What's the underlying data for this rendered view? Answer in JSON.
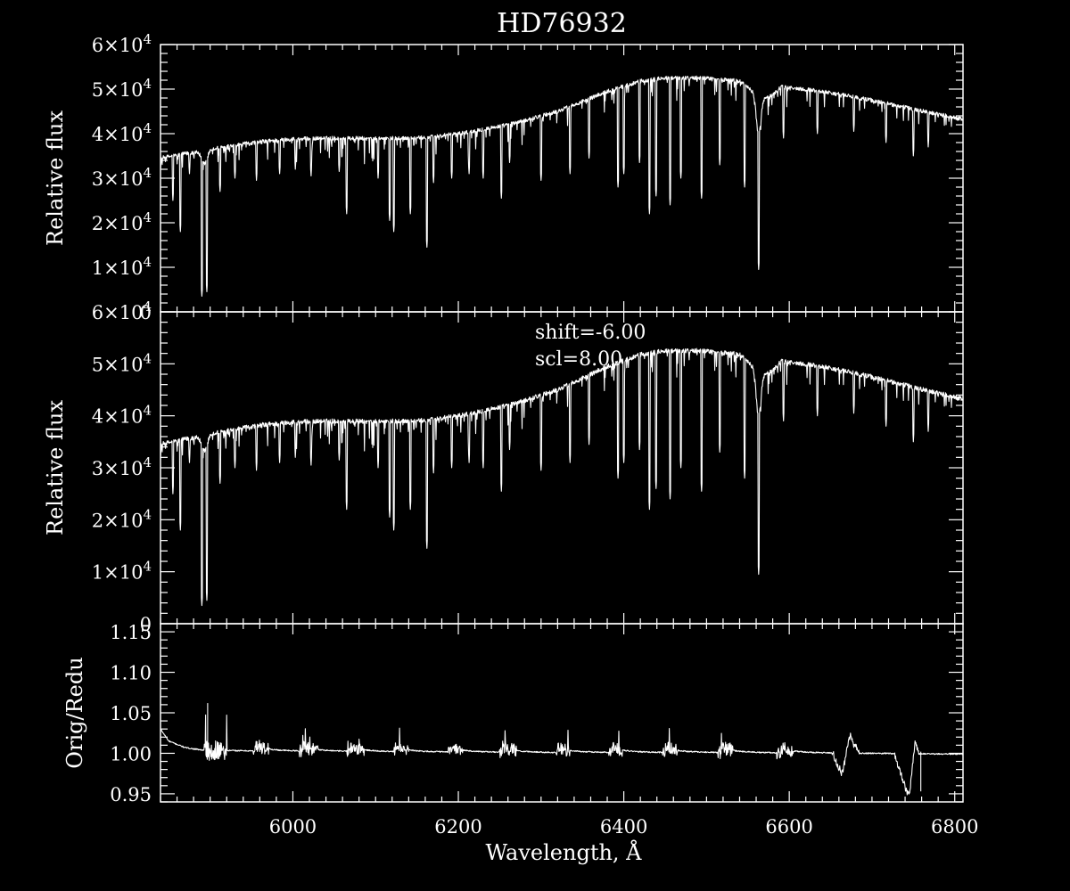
{
  "colors": {
    "background": "#000000",
    "foreground": "#ffffff"
  },
  "chart_data": {
    "type": "line",
    "title": "HD76932",
    "xlabel": "Wavelength, Å",
    "xlim": [
      5840,
      6810
    ],
    "x_ticks": [
      6000,
      6200,
      6400,
      6600,
      6800
    ],
    "panels": [
      {
        "id": "top",
        "ylabel": "Relative flux",
        "ylim": [
          0,
          60000
        ],
        "y_ticks": [
          {
            "value": 0,
            "mant": "0",
            "exp": ""
          },
          {
            "value": 10000,
            "mant": "1×10",
            "exp": "4"
          },
          {
            "value": 20000,
            "mant": "2×10",
            "exp": "4"
          },
          {
            "value": 30000,
            "mant": "3×10",
            "exp": "4"
          },
          {
            "value": 40000,
            "mant": "4×10",
            "exp": "4"
          },
          {
            "value": 50000,
            "mant": "5×10",
            "exp": "4"
          },
          {
            "value": 60000,
            "mant": "6×10",
            "exp": "4"
          }
        ],
        "continuum": [
          [
            5840,
            34500
          ],
          [
            5900,
            36500
          ],
          [
            5960,
            38200
          ],
          [
            6000,
            38800
          ],
          [
            6050,
            39000
          ],
          [
            6100,
            38900
          ],
          [
            6160,
            39100
          ],
          [
            6200,
            40000
          ],
          [
            6260,
            42000
          ],
          [
            6320,
            45000
          ],
          [
            6380,
            49500
          ],
          [
            6420,
            51800
          ],
          [
            6450,
            52500
          ],
          [
            6500,
            52500
          ],
          [
            6540,
            51800
          ],
          [
            6560,
            49000
          ],
          [
            6575,
            48000
          ],
          [
            6590,
            50500
          ],
          [
            6640,
            49500
          ],
          [
            6700,
            47500
          ],
          [
            6750,
            45500
          ],
          [
            6810,
            43200
          ]
        ],
        "absorption_lines": [
          [
            5855,
            25000
          ],
          [
            5864,
            18000
          ],
          [
            5875,
            31000
          ],
          [
            5890,
            3500
          ],
          [
            5896,
            4500
          ],
          [
            5912,
            27000
          ],
          [
            5930,
            30000
          ],
          [
            5956,
            29500
          ],
          [
            5984,
            31000
          ],
          [
            6003,
            32000
          ],
          [
            6022,
            30500
          ],
          [
            6056,
            31500
          ],
          [
            6065,
            22000
          ],
          [
            6103,
            30000
          ],
          [
            6117,
            20500
          ],
          [
            6122,
            18000
          ],
          [
            6142,
            22000
          ],
          [
            6162,
            14500
          ],
          [
            6170,
            29000
          ],
          [
            6192,
            30000
          ],
          [
            6213,
            31000
          ],
          [
            6230,
            30000
          ],
          [
            6252,
            25500
          ],
          [
            6262,
            33500
          ],
          [
            6300,
            29500
          ],
          [
            6335,
            31000
          ],
          [
            6358,
            34500
          ],
          [
            6393,
            28000
          ],
          [
            6400,
            31000
          ],
          [
            6419,
            33500
          ],
          [
            6431,
            22000
          ],
          [
            6439,
            26000
          ],
          [
            6456,
            24000
          ],
          [
            6469,
            30000
          ],
          [
            6494,
            25500
          ],
          [
            6516,
            33000
          ],
          [
            6546,
            28000
          ],
          [
            6563,
            9500
          ],
          [
            6593,
            39000
          ],
          [
            6634,
            40000
          ],
          [
            6678,
            40500
          ],
          [
            6717,
            38000
          ],
          [
            6750,
            35000
          ],
          [
            6768,
            37000
          ]
        ],
        "forest_depth": 6000
      },
      {
        "id": "middle",
        "ylabel": "Relative flux",
        "ylim": [
          0,
          60000
        ],
        "y_ticks": [
          {
            "value": 0,
            "mant": "0",
            "exp": ""
          },
          {
            "value": 10000,
            "mant": "1×10",
            "exp": "4"
          },
          {
            "value": 20000,
            "mant": "2×10",
            "exp": "4"
          },
          {
            "value": 30000,
            "mant": "3×10",
            "exp": "4"
          },
          {
            "value": 40000,
            "mant": "4×10",
            "exp": "4"
          },
          {
            "value": 50000,
            "mant": "5×10",
            "exp": "4"
          },
          {
            "value": 60000,
            "mant": "6×10",
            "exp": "4"
          }
        ],
        "annotations": [
          "shift=-6.00",
          "scl=8.00"
        ],
        "continuum": [
          [
            5840,
            34500
          ],
          [
            5900,
            36500
          ],
          [
            5960,
            38200
          ],
          [
            6000,
            38800
          ],
          [
            6050,
            39000
          ],
          [
            6100,
            38900
          ],
          [
            6160,
            39100
          ],
          [
            6200,
            40000
          ],
          [
            6260,
            42000
          ],
          [
            6320,
            45000
          ],
          [
            6380,
            49500
          ],
          [
            6420,
            51800
          ],
          [
            6450,
            52500
          ],
          [
            6500,
            52500
          ],
          [
            6540,
            51800
          ],
          [
            6560,
            49000
          ],
          [
            6575,
            48000
          ],
          [
            6590,
            50500
          ],
          [
            6640,
            49500
          ],
          [
            6700,
            47500
          ],
          [
            6750,
            45500
          ],
          [
            6810,
            43200
          ]
        ],
        "absorption_lines": [
          [
            5855,
            25000
          ],
          [
            5864,
            18000
          ],
          [
            5875,
            31000
          ],
          [
            5890,
            3500
          ],
          [
            5896,
            4500
          ],
          [
            5912,
            27000
          ],
          [
            5930,
            30000
          ],
          [
            5956,
            29500
          ],
          [
            5984,
            31000
          ],
          [
            6003,
            32000
          ],
          [
            6022,
            30500
          ],
          [
            6056,
            31500
          ],
          [
            6065,
            22000
          ],
          [
            6103,
            30000
          ],
          [
            6117,
            20500
          ],
          [
            6122,
            18000
          ],
          [
            6142,
            22000
          ],
          [
            6162,
            14500
          ],
          [
            6170,
            29000
          ],
          [
            6192,
            30000
          ],
          [
            6213,
            31000
          ],
          [
            6230,
            30000
          ],
          [
            6252,
            25500
          ],
          [
            6262,
            33500
          ],
          [
            6300,
            29500
          ],
          [
            6335,
            31000
          ],
          [
            6358,
            34500
          ],
          [
            6393,
            28000
          ],
          [
            6400,
            31000
          ],
          [
            6419,
            33500
          ],
          [
            6431,
            22000
          ],
          [
            6439,
            26000
          ],
          [
            6456,
            24000
          ],
          [
            6469,
            30000
          ],
          [
            6494,
            25500
          ],
          [
            6516,
            33000
          ],
          [
            6546,
            28000
          ],
          [
            6563,
            9500
          ],
          [
            6593,
            39000
          ],
          [
            6634,
            40000
          ],
          [
            6678,
            40500
          ],
          [
            6717,
            38000
          ],
          [
            6750,
            35000
          ],
          [
            6768,
            37000
          ]
        ],
        "forest_depth": 6000
      },
      {
        "id": "bottom",
        "ylabel": "Orig/Redu",
        "ylim": [
          0.94,
          1.16
        ],
        "y_ticks": [
          {
            "value": 0.95,
            "mant": "0.95",
            "exp": ""
          },
          {
            "value": 1.0,
            "mant": "1.00",
            "exp": ""
          },
          {
            "value": 1.05,
            "mant": "1.05",
            "exp": ""
          },
          {
            "value": 1.1,
            "mant": "1.10",
            "exp": ""
          },
          {
            "value": 1.15,
            "mant": "1.15",
            "exp": ""
          }
        ],
        "ratio_baseline": [
          [
            5840,
            1.03
          ],
          [
            5850,
            1.015
          ],
          [
            5870,
            1.007
          ],
          [
            5890,
            1.004
          ],
          [
            5950,
            1.003
          ],
          [
            6100,
            1.002
          ],
          [
            6300,
            1.001
          ],
          [
            6500,
            1.001
          ],
          [
            6700,
            1.0
          ],
          [
            6810,
            0.999
          ]
        ],
        "order_steps": [
          5955,
          6012,
          6068,
          6124,
          6190,
          6253,
          6320,
          6385,
          6450,
          6518,
          6590
        ],
        "noisy_segments": [
          [
            5893,
            5920,
            0.012,
            0.062
          ],
          [
            5952,
            5972,
            0.008,
            0.02
          ],
          [
            6008,
            6030,
            0.008,
            0.02
          ],
          [
            6065,
            6086,
            0.008,
            0.03
          ],
          [
            6122,
            6140,
            0.006,
            0.02
          ],
          [
            6188,
            6205,
            0.006,
            0.022
          ],
          [
            6250,
            6270,
            0.008,
            0.025
          ],
          [
            6318,
            6335,
            0.008,
            0.03
          ],
          [
            6382,
            6398,
            0.008,
            0.028
          ],
          [
            6447,
            6465,
            0.008,
            0.032
          ],
          [
            6514,
            6532,
            0.008,
            0.028
          ],
          [
            6585,
            6605,
            0.008,
            0.03
          ]
        ],
        "features": [
          [
            [
              6652,
              1.002
            ],
            [
              6658,
              0.985
            ],
            [
              6664,
              0.975
            ],
            [
              6670,
              1.005
            ],
            [
              6674,
              1.025
            ],
            [
              6678,
              1.01
            ],
            [
              6684,
              1.002
            ]
          ],
          [
            [
              6728,
              0.995
            ],
            [
              6735,
              0.975
            ],
            [
              6741,
              0.955
            ],
            [
              6745,
              0.948
            ],
            [
              6748,
              0.975
            ],
            [
              6752,
              1.012
            ],
            [
              6756,
              1.004
            ]
          ]
        ]
      }
    ]
  }
}
